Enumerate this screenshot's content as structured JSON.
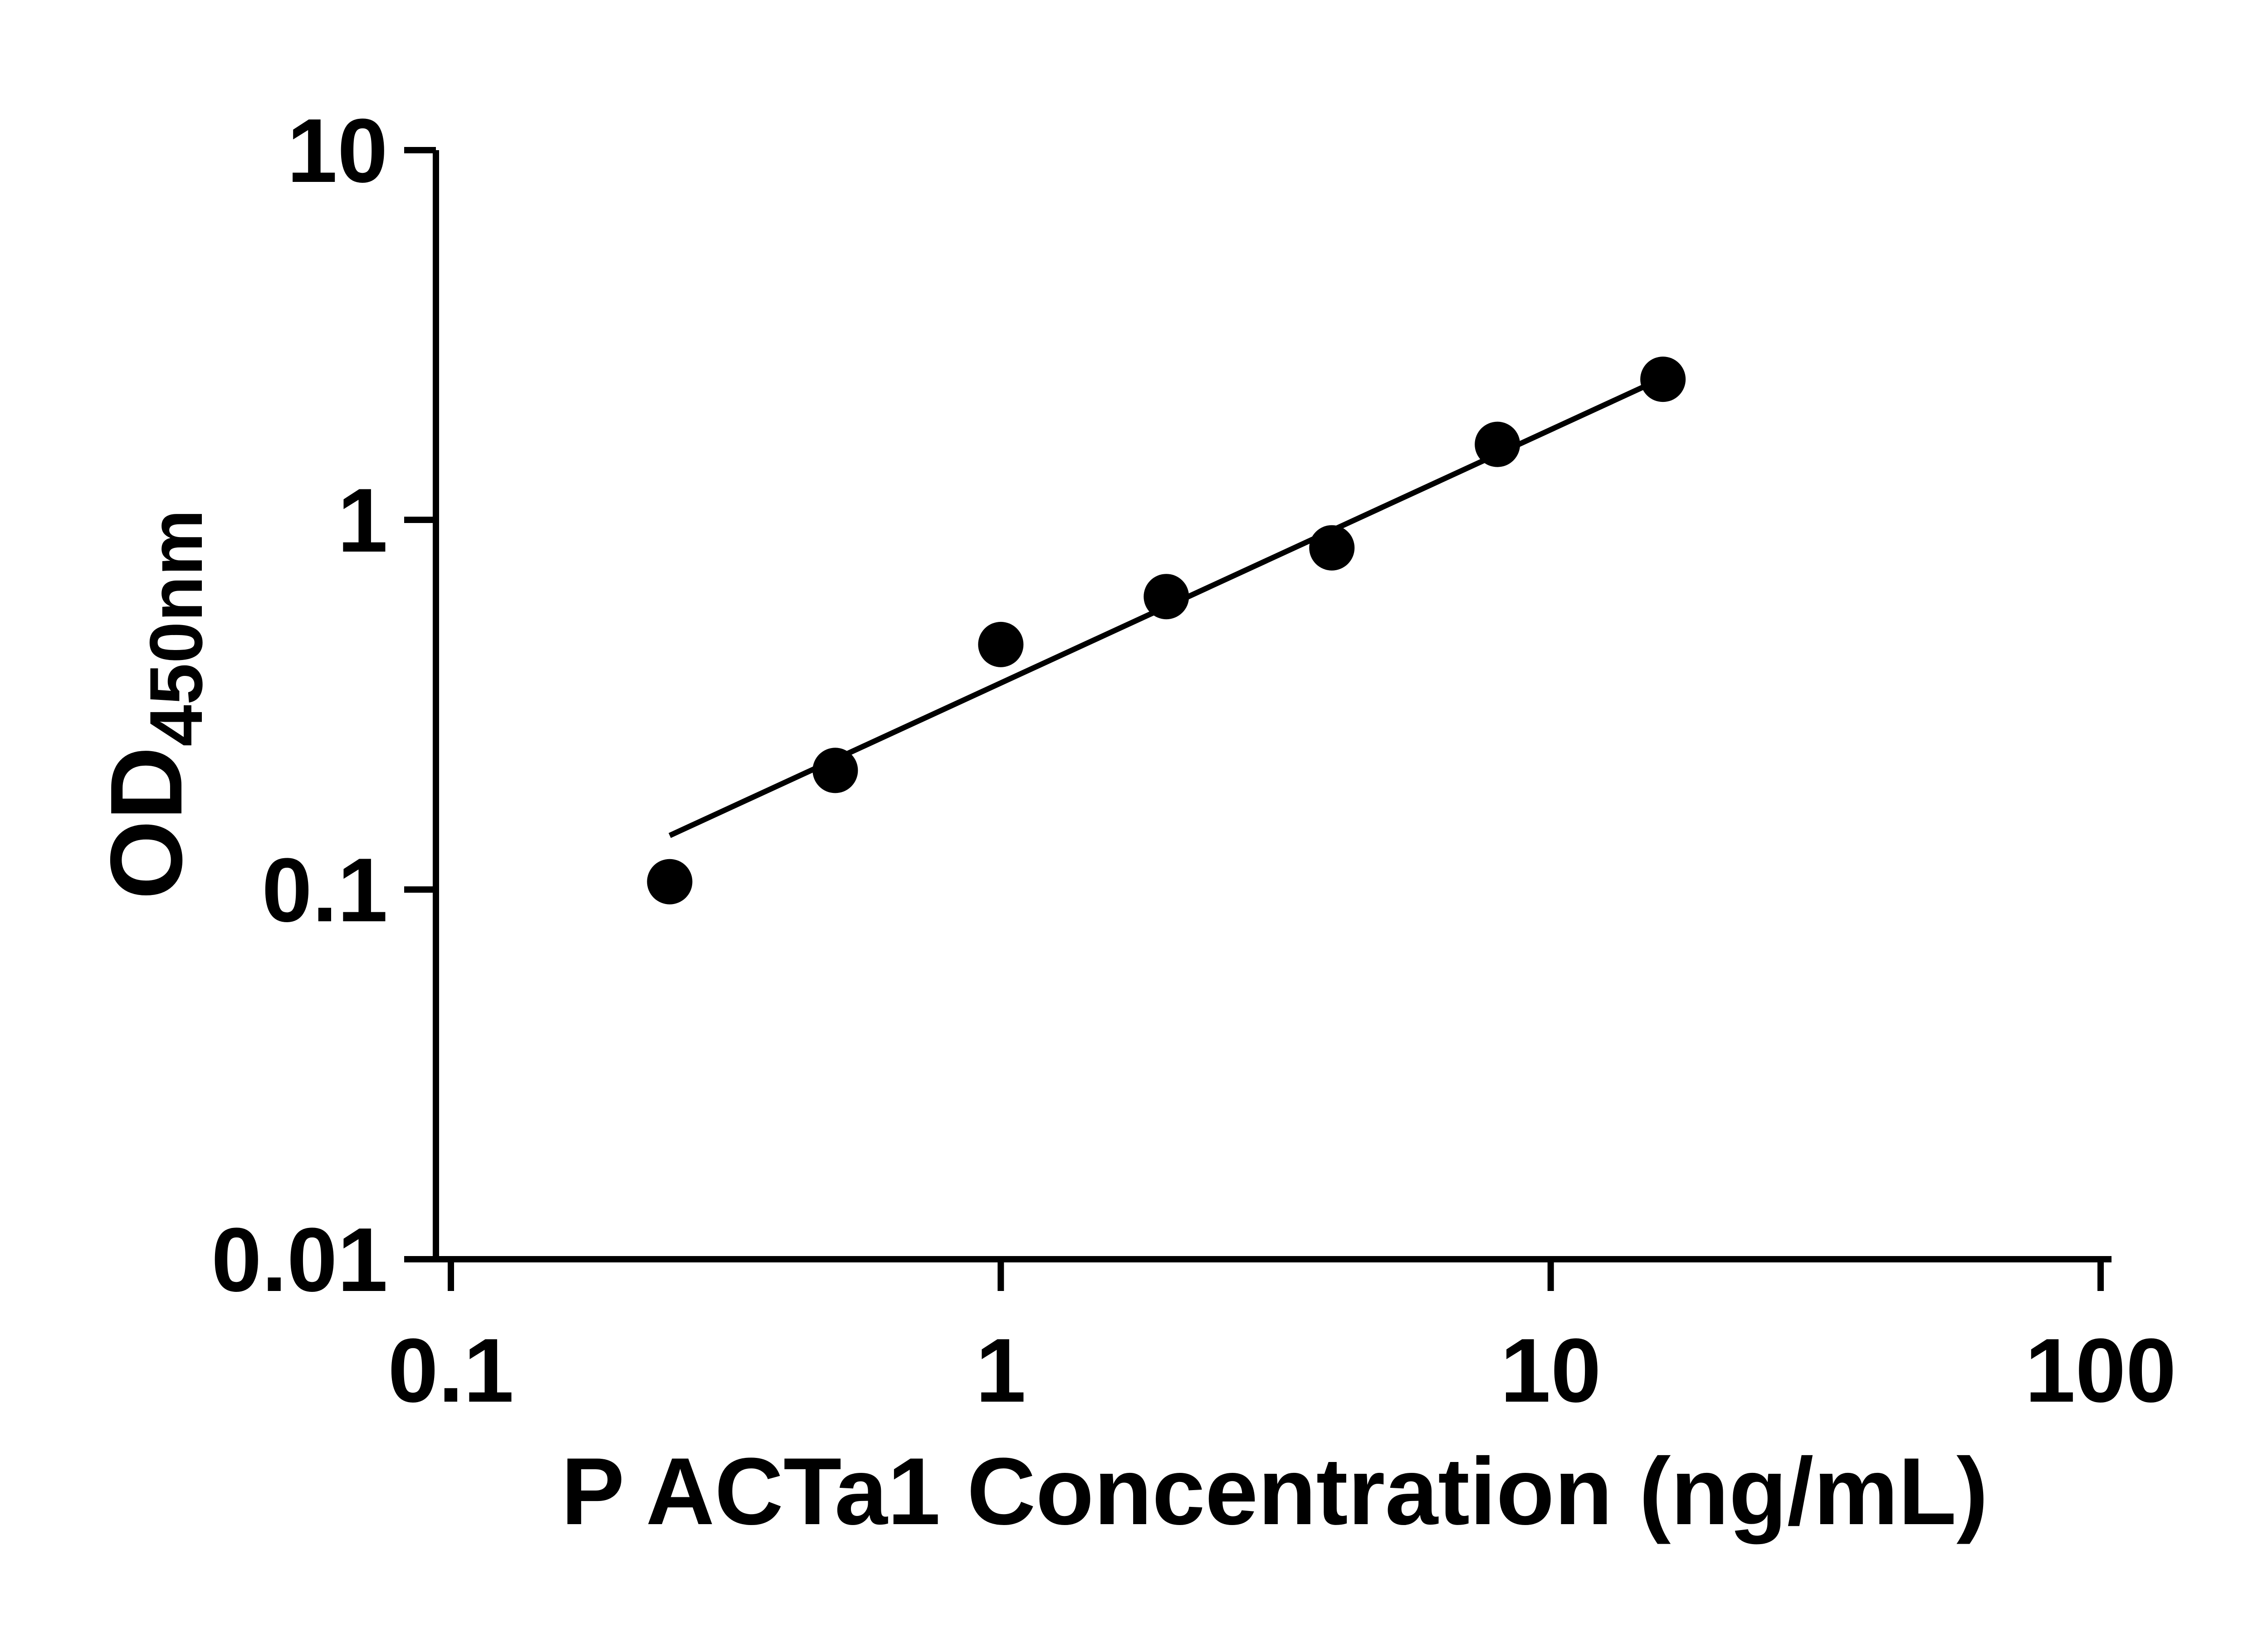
{
  "figure": {
    "background": "#ffffff"
  },
  "chart_data": {
    "type": "scatter",
    "xlabel": "P ACTa1 Concentration (ng/mL)",
    "ylabel_main": "OD",
    "ylabel_sub": "450nm",
    "x_scale": "log",
    "y_scale": "log",
    "xlim": [
      0.1,
      100
    ],
    "ylim": [
      0.01,
      10
    ],
    "x_ticks": [
      0.1,
      1,
      10,
      100
    ],
    "x_tick_labels": [
      "0.1",
      "1",
      "10",
      "100"
    ],
    "y_ticks": [
      10,
      1,
      0.1,
      0.01
    ],
    "y_tick_labels": [
      "10",
      "1",
      "0.1",
      "0.01"
    ],
    "grid": false,
    "legend": "none",
    "series": [
      {
        "name": "standard-curve-points",
        "marker": "circle-filled",
        "x": [
          0.25,
          0.5,
          1,
          2,
          4,
          8,
          16
        ],
        "y": [
          0.105,
          0.21,
          0.46,
          0.62,
          0.84,
          1.6,
          2.4
        ]
      }
    ],
    "trend_line": {
      "x1": 0.25,
      "y1": 0.14,
      "x2": 16,
      "y2": 2.42
    },
    "colors": {
      "marker": "#000000",
      "line": "#000000",
      "axis": "#000000",
      "text": "#000000"
    }
  }
}
